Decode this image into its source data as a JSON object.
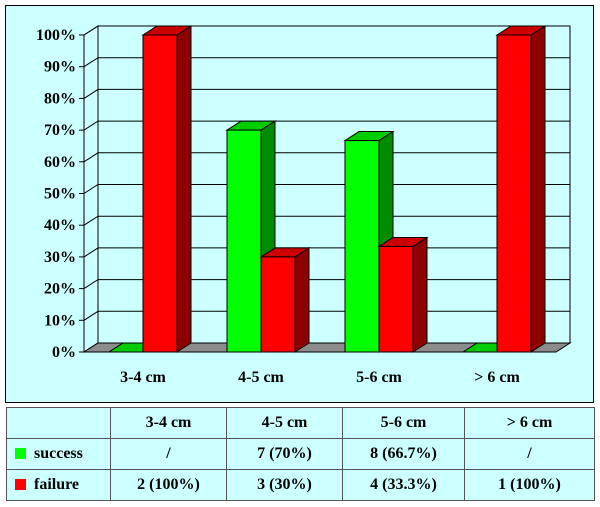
{
  "colors": {
    "background": "#ccffff",
    "success": "#00ff00",
    "failure": "#ff0000",
    "floor": "#8c8c8c"
  },
  "chart_data": {
    "type": "bar",
    "categories": [
      "3-4 cm",
      "4-5 cm",
      "5-6 cm",
      "> 6 cm"
    ],
    "series": [
      {
        "name": "success",
        "values": [
          0,
          70,
          66.7,
          0
        ]
      },
      {
        "name": "failure",
        "values": [
          100,
          30,
          33.3,
          100
        ]
      }
    ],
    "ylim": [
      0,
      100
    ],
    "yticks": [
      "0%",
      "10%",
      "20%",
      "30%",
      "40%",
      "50%",
      "60%",
      "70%",
      "80%",
      "90%",
      "100%"
    ],
    "grid": true,
    "style": "3d-bar"
  },
  "table": {
    "headers": [
      "",
      "3-4 cm",
      "4-5 cm",
      "5-6 cm",
      "> 6 cm"
    ],
    "rows": [
      {
        "label": "success",
        "color": "#00ff00",
        "cells": [
          "/",
          "7 (70%)",
          "8 (66.7%)",
          "/"
        ]
      },
      {
        "label": "failure",
        "color": "#ff0000",
        "cells": [
          "2 (100%)",
          "3 (30%)",
          "4 (33.3%)",
          "1 (100%)"
        ]
      }
    ]
  }
}
